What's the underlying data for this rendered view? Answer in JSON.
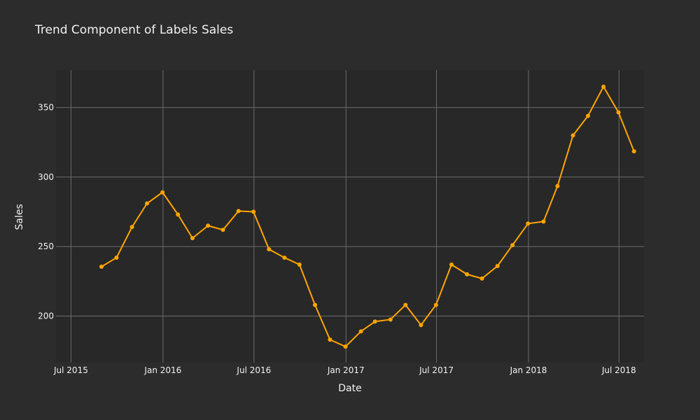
{
  "chart_data": {
    "type": "line",
    "title": "Trend Component of Labels Sales",
    "xlabel": "Date",
    "ylabel": "Sales",
    "x_ticks": [
      {
        "date": "2015-07-01",
        "label": "Jul 2015"
      },
      {
        "date": "2016-01-01",
        "label": "Jan 2016"
      },
      {
        "date": "2016-07-01",
        "label": "Jul 2016"
      },
      {
        "date": "2017-01-01",
        "label": "Jan 2017"
      },
      {
        "date": "2017-07-01",
        "label": "Jul 2017"
      },
      {
        "date": "2018-01-01",
        "label": "Jan 2018"
      },
      {
        "date": "2018-07-01",
        "label": "Jul 2018"
      }
    ],
    "y_ticks": [
      200,
      250,
      300,
      350
    ],
    "xlim": [
      "2015-06-01",
      "2018-08-20"
    ],
    "ylim": [
      166.5,
      377
    ],
    "grid": true,
    "series": [
      {
        "color": "#ffa500",
        "points": [
          {
            "x": "2015-08-31",
            "y": 235.5
          },
          {
            "x": "2015-09-30",
            "y": 242
          },
          {
            "x": "2015-10-31",
            "y": 264
          },
          {
            "x": "2015-11-30",
            "y": 281
          },
          {
            "x": "2015-12-31",
            "y": 289
          },
          {
            "x": "2016-01-31",
            "y": 273
          },
          {
            "x": "2016-02-29",
            "y": 256
          },
          {
            "x": "2016-03-31",
            "y": 265
          },
          {
            "x": "2016-04-30",
            "y": 262
          },
          {
            "x": "2016-05-31",
            "y": 275.5
          },
          {
            "x": "2016-06-30",
            "y": 275
          },
          {
            "x": "2016-07-31",
            "y": 248
          },
          {
            "x": "2016-08-31",
            "y": 242
          },
          {
            "x": "2016-09-30",
            "y": 237
          },
          {
            "x": "2016-10-31",
            "y": 208
          },
          {
            "x": "2016-11-30",
            "y": 183
          },
          {
            "x": "2016-12-31",
            "y": 178
          },
          {
            "x": "2017-01-31",
            "y": 189
          },
          {
            "x": "2017-02-28",
            "y": 196
          },
          {
            "x": "2017-03-31",
            "y": 197.5
          },
          {
            "x": "2017-04-30",
            "y": 208
          },
          {
            "x": "2017-05-31",
            "y": 193.5
          },
          {
            "x": "2017-06-30",
            "y": 208
          },
          {
            "x": "2017-07-31",
            "y": 237
          },
          {
            "x": "2017-08-31",
            "y": 230
          },
          {
            "x": "2017-09-30",
            "y": 227
          },
          {
            "x": "2017-10-31",
            "y": 236
          },
          {
            "x": "2017-11-30",
            "y": 251
          },
          {
            "x": "2017-12-31",
            "y": 266.5
          },
          {
            "x": "2018-01-31",
            "y": 268
          },
          {
            "x": "2018-02-28",
            "y": 293.5
          },
          {
            "x": "2018-03-31",
            "y": 330
          },
          {
            "x": "2018-04-30",
            "y": 344
          },
          {
            "x": "2018-05-31",
            "y": 365
          },
          {
            "x": "2018-06-30",
            "y": 346.5
          },
          {
            "x": "2018-07-31",
            "y": 318.5
          }
        ]
      }
    ],
    "colors": {
      "page_background": "#2c2c2c",
      "plot_background": "#282828",
      "gridline": "#6b6b6b",
      "text": "#f2f2f2"
    }
  }
}
